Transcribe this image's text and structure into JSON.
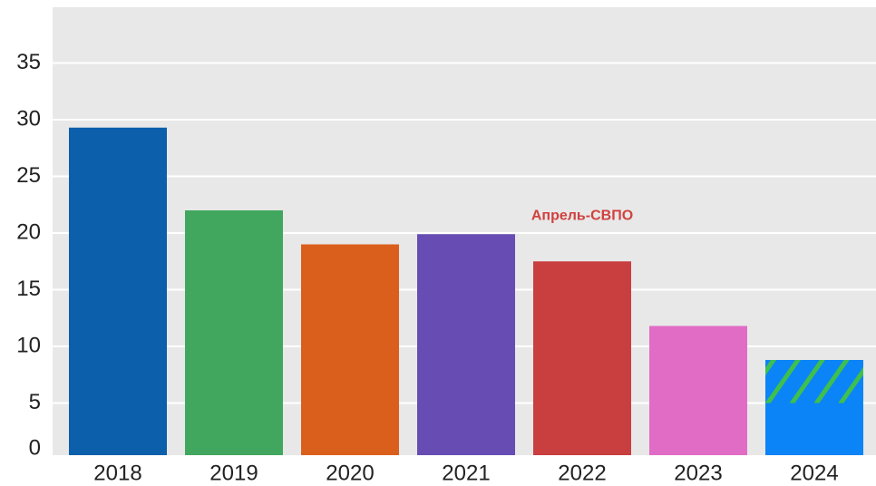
{
  "chart_data": {
    "type": "bar",
    "categories": [
      "2018",
      "2019",
      "2020",
      "2021",
      "2022",
      "2023",
      "2024"
    ],
    "values": [
      29.3,
      22.0,
      19.0,
      19.9,
      17.5,
      11.8,
      5
    ],
    "hatched_values": [
      null,
      null,
      null,
      null,
      null,
      null,
      3.8
    ],
    "colors": [
      "#0b5fab",
      "#42a75e",
      "#db5f1c",
      "#674db3",
      "#c93e3e",
      "#e06cc6",
      "#0a84f6"
    ],
    "hatch_color": "#3fbf4f",
    "annotation": {
      "text": "Апрель-СВПО",
      "category": 4,
      "y": 21.5,
      "color": "#d0413e"
    },
    "ylim": [
      0,
      40
    ],
    "yticks": [
      0,
      5,
      10,
      15,
      20,
      25,
      30,
      35
    ],
    "grid": true
  }
}
